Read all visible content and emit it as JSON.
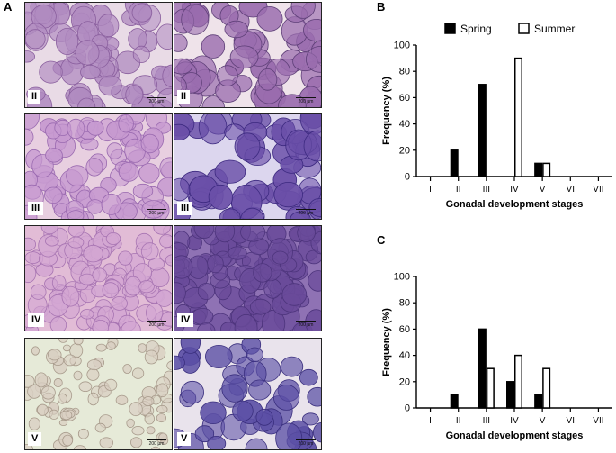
{
  "panel_labels": {
    "a": "A",
    "b": "B",
    "c": "C"
  },
  "micrographs": [
    {
      "stage": "II",
      "scale": "200 µm",
      "texture": "spring-II"
    },
    {
      "stage": "II",
      "scale": "200 µm",
      "texture": "summer-II"
    },
    {
      "stage": "III",
      "scale": "200 µm",
      "texture": "spring-III"
    },
    {
      "stage": "III",
      "scale": "200 µm",
      "texture": "summer-III"
    },
    {
      "stage": "IV",
      "scale": "200 µm",
      "texture": "spring-IV"
    },
    {
      "stage": "IV",
      "scale": "200 µm",
      "texture": "summer-IV"
    },
    {
      "stage": "V",
      "scale": "200 µm",
      "texture": "spring-V"
    },
    {
      "stage": "V",
      "scale": "200 µm",
      "texture": "summer-V"
    }
  ],
  "chart_data": [
    {
      "type": "bar",
      "panel": "B",
      "categories": [
        "I",
        "II",
        "III",
        "IV",
        "V",
        "VI",
        "VII"
      ],
      "series": [
        {
          "name": "Spring",
          "values": [
            0,
            20,
            70,
            0,
            10,
            0,
            0
          ],
          "color": "#000000"
        },
        {
          "name": "Summer",
          "values": [
            0,
            0,
            0,
            90,
            10,
            0,
            0
          ],
          "color": "#ffffff"
        }
      ],
      "xlabel": "Gonadal development stages",
      "ylabel": "Frequency (%)",
      "ylim": [
        0,
        100
      ],
      "yticks": [
        0,
        20,
        40,
        60,
        80,
        100
      ],
      "legend": "top"
    },
    {
      "type": "bar",
      "panel": "C",
      "categories": [
        "I",
        "II",
        "III",
        "IV",
        "V",
        "VI",
        "VII"
      ],
      "series": [
        {
          "name": "Spring",
          "values": [
            0,
            10,
            60,
            20,
            10,
            0,
            0
          ],
          "color": "#000000"
        },
        {
          "name": "Summer",
          "values": [
            0,
            0,
            30,
            40,
            30,
            0,
            0
          ],
          "color": "#ffffff"
        }
      ],
      "xlabel": "Gonadal development stages",
      "ylabel": "Frequency (%)",
      "ylim": [
        0,
        100
      ],
      "yticks": [
        0,
        20,
        40,
        60,
        80,
        100
      ],
      "legend": "none"
    }
  ]
}
